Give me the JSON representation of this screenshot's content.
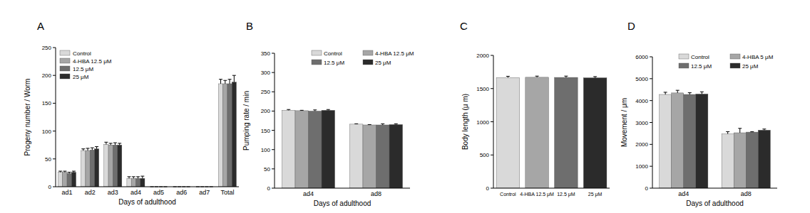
{
  "chart_data": [
    {
      "type": "bar",
      "title": "A",
      "x_label": "Days of adulthood",
      "y_label": "Progeny number / Worm",
      "categories": [
        "ad1",
        "ad2",
        "ad3",
        "ad4",
        "ad5",
        "ad6",
        "ad7",
        "Total"
      ],
      "series": [
        {
          "name": "Control",
          "color": "#d9d9d9",
          "values": [
            26,
            65,
            76,
            15,
            0,
            0,
            0,
            185
          ],
          "errors": [
            2,
            3,
            4,
            3,
            0,
            0,
            0,
            8
          ]
        },
        {
          "name": "4-HBA 12.5 μM",
          "color": "#a6a6a6",
          "values": [
            26,
            65,
            75,
            15,
            0,
            0,
            0,
            185
          ],
          "errors": [
            2,
            4,
            3,
            3,
            0,
            0,
            0,
            6
          ]
        },
        {
          "name": "12.5 μM",
          "color": "#6e6e6e",
          "values": [
            24,
            66,
            75,
            15,
            0,
            0,
            0,
            185
          ],
          "errors": [
            2,
            4,
            4,
            3,
            0,
            0,
            0,
            8
          ]
        },
        {
          "name": "25 μM",
          "color": "#2b2b2b",
          "values": [
            26,
            68,
            75,
            15,
            0,
            0,
            0,
            188
          ],
          "errors": [
            2,
            4,
            3,
            4,
            0,
            0,
            0,
            12
          ]
        }
      ],
      "ylim": [
        0,
        250
      ],
      "yticks": [
        0,
        50,
        100,
        150,
        200,
        250
      ],
      "grid": false,
      "legend": "upper left"
    },
    {
      "type": "bar",
      "title": "B",
      "x_label": "Days of adulthood",
      "y_label": "Pumping rate / min",
      "categories": [
        "ad4",
        "ad8"
      ],
      "series": [
        {
          "name": "Control",
          "color": "#d9d9d9",
          "values": [
            202,
            166
          ],
          "errors": [
            2,
            1
          ]
        },
        {
          "name": "4-HBA 12.5 μM",
          "color": "#a6a6a6",
          "values": [
            201,
            164
          ],
          "errors": [
            1,
            1
          ]
        },
        {
          "name": "12.5 μM",
          "color": "#6e6e6e",
          "values": [
            200,
            164
          ],
          "errors": [
            3,
            3
          ]
        },
        {
          "name": "25 μM",
          "color": "#2b2b2b",
          "values": [
            202,
            165
          ],
          "errors": [
            2,
            2
          ]
        }
      ],
      "ylim": [
        0,
        350
      ],
      "yticks": [
        0,
        50,
        100,
        150,
        200,
        250,
        300,
        350
      ],
      "grid": false,
      "legend": "upper right"
    },
    {
      "type": "bar",
      "title": "C",
      "y_label": "Body length (μ m)",
      "categories": [
        "Control",
        "4-HBA 12.5 μM",
        "12.5 μM",
        "25 μM"
      ],
      "values": [
        1665,
        1670,
        1668,
        1662
      ],
      "errors": [
        20,
        18,
        20,
        18
      ],
      "colors": [
        "#d9d9d9",
        "#a6a6a6",
        "#6e6e6e",
        "#2b2b2b"
      ],
      "ylim": [
        0,
        2000
      ],
      "yticks": [
        0,
        500,
        1000,
        1500,
        2000
      ],
      "grid": false
    },
    {
      "type": "bar",
      "title": "D",
      "x_label": "Days of adulthood",
      "y_label": "Movement / μm",
      "categories": [
        "ad4",
        "ad8"
      ],
      "series": [
        {
          "name": "Control",
          "color": "#d9d9d9",
          "values": [
            4280,
            2480
          ],
          "errors": [
            100,
            100
          ]
        },
        {
          "name": "4-HBA 5 μM",
          "color": "#a6a6a6",
          "values": [
            4350,
            2530
          ],
          "errors": [
            120,
            200
          ]
        },
        {
          "name": "12.5 μM",
          "color": "#6e6e6e",
          "values": [
            4280,
            2560
          ],
          "errors": [
            80,
            20
          ]
        },
        {
          "name": "25 μM",
          "color": "#2b2b2b",
          "values": [
            4300,
            2650
          ],
          "errors": [
            100,
            50
          ]
        }
      ],
      "ylim": [
        0,
        6000
      ],
      "yticks": [
        0,
        1000,
        2000,
        3000,
        4000,
        5000,
        6000
      ],
      "grid": false,
      "legend": "upper right"
    }
  ]
}
